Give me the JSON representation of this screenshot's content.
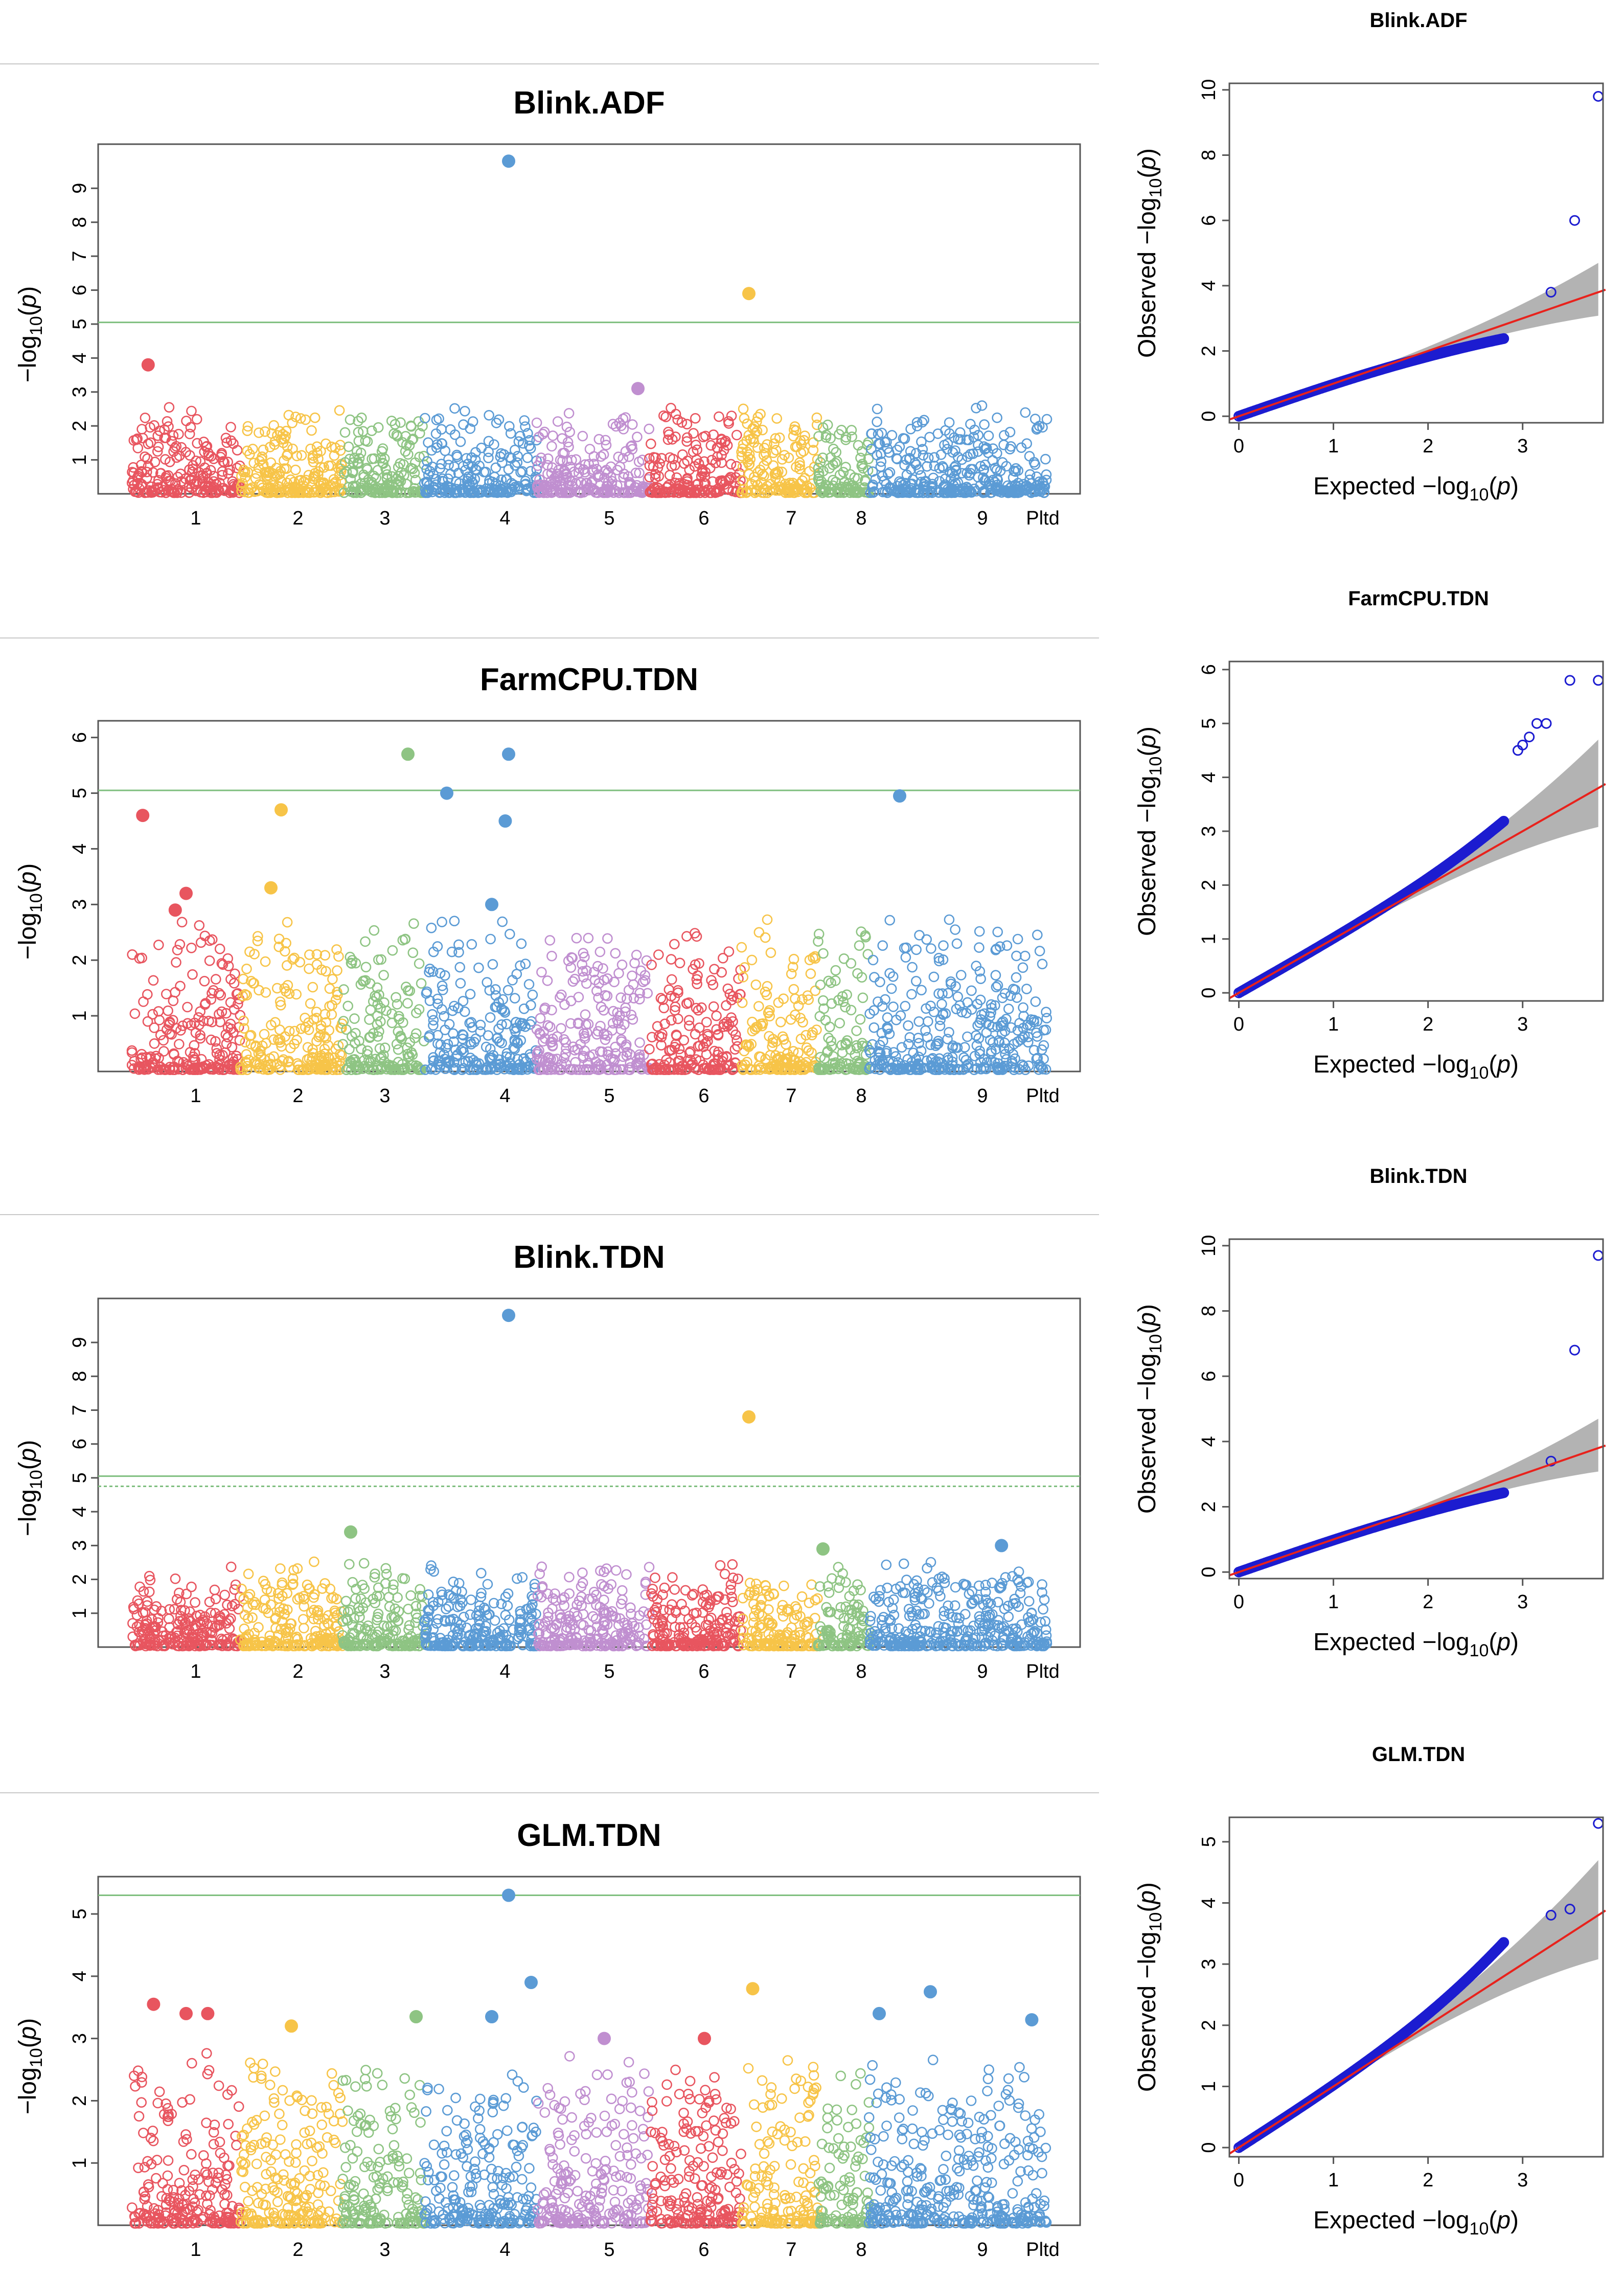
{
  "chart_data": [
    {
      "type": "scatter",
      "kind": "manhattan",
      "title": "Blink.ADF",
      "ylabel": "-log10(p)",
      "yticks": [
        1,
        2,
        3,
        4,
        5,
        6,
        7,
        8,
        9
      ],
      "ylim": [
        0,
        10.3
      ],
      "chromosomes": [
        "1",
        "2",
        "3",
        "4",
        "5",
        "6",
        "7",
        "8",
        "9",
        "Pltd"
      ],
      "threshold_lines": [
        {
          "y": 5.05,
          "style": "solid"
        }
      ],
      "background_max": 2.6,
      "highlighted": [
        {
          "chrom": "4",
          "pos": 0.75,
          "y": 9.8
        },
        {
          "chrom": "7",
          "pos": 0.1,
          "y": 5.9
        },
        {
          "chrom": "1",
          "pos": 0.15,
          "y": 3.8
        },
        {
          "chrom": "5",
          "pos": 0.9,
          "y": 3.1
        }
      ]
    },
    {
      "type": "scatter",
      "kind": "manhattan",
      "title": "FarmCPU.TDN",
      "ylabel": "-log10(p)",
      "yticks": [
        1,
        2,
        3,
        4,
        5,
        6
      ],
      "ylim": [
        0,
        6.3
      ],
      "chromosomes": [
        "1",
        "2",
        "3",
        "4",
        "5",
        "6",
        "7",
        "8",
        "9",
        "Pltd"
      ],
      "threshold_lines": [
        {
          "y": 5.05,
          "style": "solid"
        }
      ],
      "background_max": 2.8,
      "highlighted": [
        {
          "chrom": "3",
          "pos": 0.8,
          "y": 5.7
        },
        {
          "chrom": "4",
          "pos": 0.75,
          "y": 5.7
        },
        {
          "chrom": "4",
          "pos": 0.2,
          "y": 5.0
        },
        {
          "chrom": "9",
          "pos": 0.3,
          "y": 4.95
        },
        {
          "chrom": "2",
          "pos": 0.4,
          "y": 4.7
        },
        {
          "chrom": "1",
          "pos": 0.1,
          "y": 4.6
        },
        {
          "chrom": "4",
          "pos": 0.72,
          "y": 4.5
        },
        {
          "chrom": "2",
          "pos": 0.3,
          "y": 3.3
        },
        {
          "chrom": "1",
          "pos": 0.5,
          "y": 3.2
        },
        {
          "chrom": "4",
          "pos": 0.6,
          "y": 3.0
        },
        {
          "chrom": "1",
          "pos": 0.4,
          "y": 2.9
        }
      ]
    },
    {
      "type": "scatter",
      "kind": "manhattan",
      "title": "Blink.TDN",
      "ylabel": "-log10(p)",
      "yticks": [
        1,
        2,
        3,
        4,
        5,
        6,
        7,
        8,
        9
      ],
      "ylim": [
        0,
        10.3
      ],
      "chromosomes": [
        "1",
        "2",
        "3",
        "4",
        "5",
        "6",
        "7",
        "8",
        "9",
        "Pltd"
      ],
      "threshold_lines": [
        {
          "y": 5.05,
          "style": "solid"
        },
        {
          "y": 4.75,
          "style": "dotted"
        }
      ],
      "background_max": 2.6,
      "highlighted": [
        {
          "chrom": "4",
          "pos": 0.75,
          "y": 9.8
        },
        {
          "chrom": "7",
          "pos": 0.1,
          "y": 6.8
        },
        {
          "chrom": "3",
          "pos": 0.1,
          "y": 3.4
        },
        {
          "chrom": "Pltd",
          "pos": 0.4,
          "y": 3.0
        },
        {
          "chrom": "8",
          "pos": 0.1,
          "y": 2.9
        }
      ]
    },
    {
      "type": "scatter",
      "kind": "manhattan",
      "title": "GLM.TDN",
      "ylabel": "-log10(p)",
      "yticks": [
        1,
        2,
        3,
        4,
        5
      ],
      "ylim": [
        0,
        5.6
      ],
      "chromosomes": [
        "1",
        "2",
        "3",
        "4",
        "5",
        "6",
        "7",
        "8",
        "9",
        "Pltd"
      ],
      "threshold_lines": [
        {
          "y": 5.3,
          "style": "solid"
        }
      ],
      "background_max": 2.8,
      "highlighted": [
        {
          "chrom": "4",
          "pos": 0.75,
          "y": 5.3
        },
        {
          "chrom": "4",
          "pos": 0.95,
          "y": 3.9
        },
        {
          "chrom": "7",
          "pos": 0.15,
          "y": 3.8
        },
        {
          "chrom": "9",
          "pos": 0.6,
          "y": 3.75
        },
        {
          "chrom": "1",
          "pos": 0.2,
          "y": 3.55
        },
        {
          "chrom": "1",
          "pos": 0.5,
          "y": 3.4
        },
        {
          "chrom": "1",
          "pos": 0.7,
          "y": 3.4
        },
        {
          "chrom": "3",
          "pos": 0.9,
          "y": 3.35
        },
        {
          "chrom": "4",
          "pos": 0.6,
          "y": 3.35
        },
        {
          "chrom": "Pltd",
          "pos": 0.8,
          "y": 3.3
        },
        {
          "chrom": "9",
          "pos": 0.1,
          "y": 3.4
        },
        {
          "chrom": "2",
          "pos": 0.5,
          "y": 3.2
        },
        {
          "chrom": "5",
          "pos": 0.6,
          "y": 3.0
        },
        {
          "chrom": "6",
          "pos": 0.6,
          "y": 3.0
        }
      ]
    },
    {
      "type": "scatter",
      "kind": "qq",
      "title": "Blink.ADF",
      "xlabel": "Expected -log10(p)",
      "ylabel": "Observed -log10(p)",
      "xlim": [
        -0.1,
        3.85
      ],
      "ylim": [
        -0.2,
        10.2
      ],
      "xticks": [
        0,
        1,
        2,
        3
      ],
      "yticks": [
        0,
        2,
        4,
        6,
        8,
        10
      ],
      "deviation_ratio": 0.72,
      "ci_halfwidth_at_max": 0.9,
      "tail_points": [
        [
          3.3,
          3.8
        ],
        [
          3.55,
          6.0
        ],
        [
          3.8,
          9.8
        ]
      ]
    },
    {
      "type": "scatter",
      "kind": "qq",
      "title": "FarmCPU.TDN",
      "xlabel": "Expected -log10(p)",
      "ylabel": "Observed -log10(p)",
      "xlim": [
        -0.1,
        3.85
      ],
      "ylim": [
        -0.15,
        6.15
      ],
      "xticks": [
        0,
        1,
        2,
        3
      ],
      "yticks": [
        0,
        1,
        2,
        3,
        4,
        5,
        6
      ],
      "deviation_ratio": 1.2,
      "ci_halfwidth_at_max": 0.9,
      "tail_points": [
        [
          2.95,
          4.5
        ],
        [
          3.0,
          4.6
        ],
        [
          3.07,
          4.75
        ],
        [
          3.15,
          5.0
        ],
        [
          3.25,
          5.0
        ],
        [
          3.5,
          5.8
        ],
        [
          3.8,
          5.8
        ]
      ]
    },
    {
      "type": "scatter",
      "kind": "qq",
      "title": "Blink.TDN",
      "xlabel": "Expected -log10(p)",
      "ylabel": "Observed -log10(p)",
      "xlim": [
        -0.1,
        3.85
      ],
      "ylim": [
        -0.2,
        10.2
      ],
      "xticks": [
        0,
        1,
        2,
        3
      ],
      "yticks": [
        0,
        2,
        4,
        6,
        8,
        10
      ],
      "deviation_ratio": 0.75,
      "ci_halfwidth_at_max": 0.9,
      "tail_points": [
        [
          3.3,
          3.4
        ],
        [
          3.55,
          6.8
        ],
        [
          3.8,
          9.7
        ]
      ]
    },
    {
      "type": "scatter",
      "kind": "qq",
      "title": "GLM.TDN",
      "xlabel": "Expected -log10(p)",
      "ylabel": "Observed -log10(p)",
      "xlim": [
        -0.1,
        3.85
      ],
      "ylim": [
        -0.15,
        5.4
      ],
      "xticks": [
        0,
        1,
        2,
        3
      ],
      "yticks": [
        0,
        1,
        2,
        3,
        4,
        5
      ],
      "deviation_ratio": 1.3,
      "ci_halfwidth_at_max": 0.9,
      "tail_points": [
        [
          3.3,
          3.8
        ],
        [
          3.5,
          3.9
        ],
        [
          3.8,
          5.3
        ]
      ]
    }
  ],
  "palette": {
    "chrom_colors": [
      "#e8555f",
      "#f7c448",
      "#8ec483",
      "#5b9bd5",
      "#c08fd0",
      "#e8555f",
      "#f7c448",
      "#8ec483",
      "#5b9bd5",
      "#5b9bd5"
    ],
    "threshold": "#7fbf7f",
    "qq_points": "#1c1cd0",
    "qq_line": "#e8221c",
    "qq_band": "#b3b3b3"
  }
}
